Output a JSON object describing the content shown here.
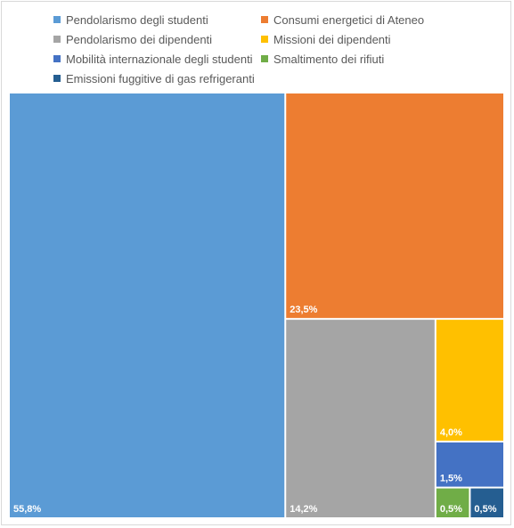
{
  "chart_data": {
    "type": "treemap",
    "legend_position": "top",
    "items": [
      {
        "name": "Pendolarismo degli studenti",
        "value": 55.8,
        "label": "55,8%",
        "color": "#5B9BD5"
      },
      {
        "name": "Consumi energetici di Ateneo",
        "value": 23.5,
        "label": "23,5%",
        "color": "#ED7D31"
      },
      {
        "name": "Pendolarismo dei dipendenti",
        "value": 14.2,
        "label": "14,2%",
        "color": "#A5A5A5"
      },
      {
        "name": "Missioni dei dipendenti",
        "value": 4.0,
        "label": "4,0%",
        "color": "#FFC000"
      },
      {
        "name": "Mobilità internazionale degli studenti",
        "value": 1.5,
        "label": "1,5%",
        "color": "#4472C4"
      },
      {
        "name": "Smaltimento dei rifiuti",
        "value": 0.5,
        "label": "0,5%",
        "color": "#70AD47"
      },
      {
        "name": "Emissioni fuggitive di gas refrigeranti",
        "value": 0.5,
        "label": "0,5%",
        "color": "#255E91"
      }
    ]
  }
}
